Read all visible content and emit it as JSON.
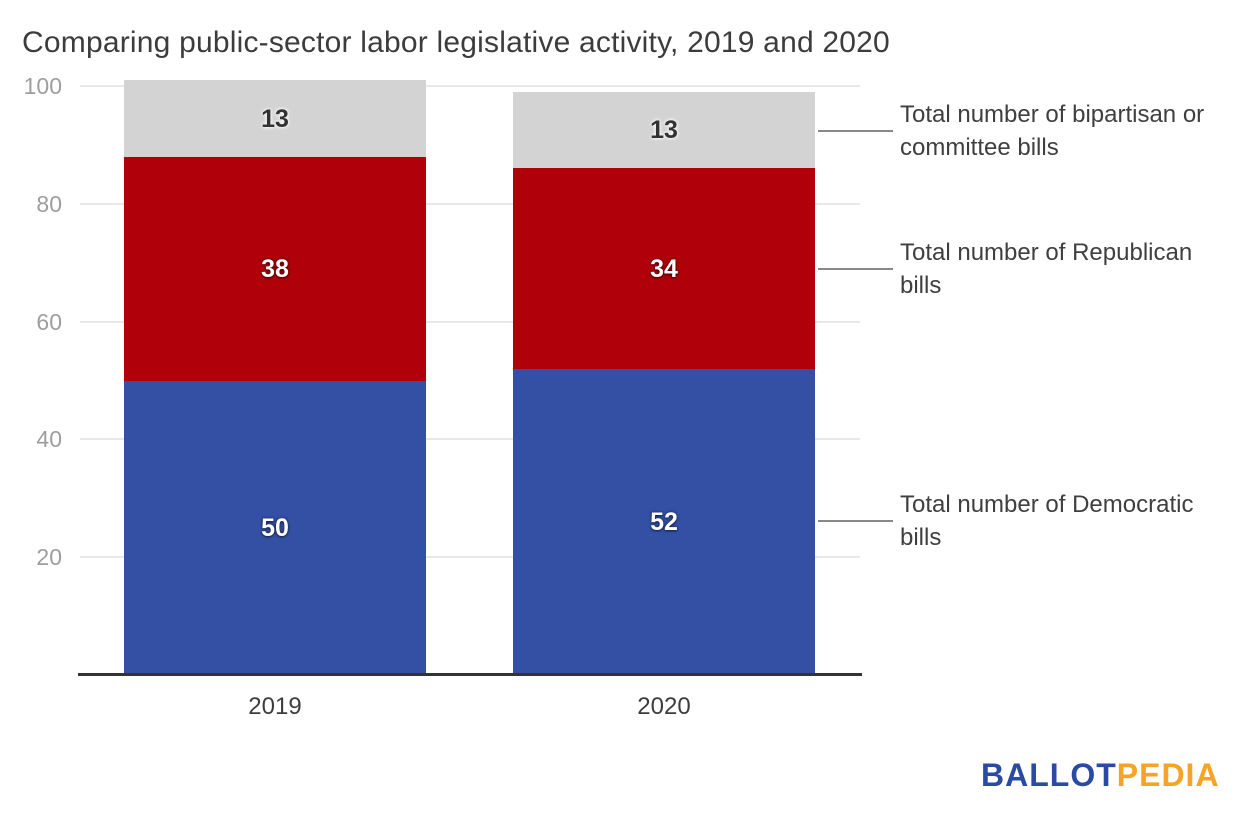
{
  "title": "Comparing public-sector labor legislative activity, 2019 and 2020",
  "chart_data": {
    "type": "bar",
    "subtype": "stacked-vertical",
    "categories": [
      "2019",
      "2020"
    ],
    "series": [
      {
        "name": "Democratic bills",
        "color": "#3450A5",
        "label_color": "light",
        "values": [
          50,
          52
        ]
      },
      {
        "name": "Republican bills",
        "color": "#B0000A",
        "label_color": "light",
        "values": [
          38,
          34
        ]
      },
      {
        "name": "Bipartisan or committee bills",
        "color": "#D3D3D3",
        "label_color": "dark",
        "values": [
          13,
          13
        ]
      }
    ],
    "ylim": [
      0,
      100
    ],
    "yticks": [
      20,
      40,
      60,
      80,
      100
    ],
    "grid": true,
    "xlabel": "",
    "ylabel": "",
    "legend_position": "right-annotations"
  },
  "annotations": [
    {
      "lines": [
        "Total number of bipartisan or",
        "committee bills"
      ],
      "target_series": "Bipartisan or committee bills"
    },
    {
      "lines": [
        "Total number of Republican",
        "bills"
      ],
      "target_series": "Republican bills"
    },
    {
      "lines": [
        "Total number of Democratic",
        "bills"
      ],
      "target_series": "Democratic bills"
    }
  ],
  "branding": {
    "logo_part1": "BALLOT",
    "logo_part2": "PEDIA",
    "logo_part1_color": "#2B4AA3",
    "logo_part2_color": "#F7A324"
  }
}
